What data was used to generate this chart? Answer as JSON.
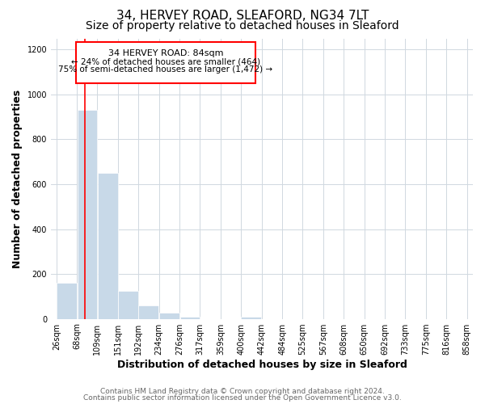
{
  "title": "34, HERVEY ROAD, SLEAFORD, NG34 7LT",
  "subtitle": "Size of property relative to detached houses in Sleaford",
  "xlabel": "Distribution of detached houses by size in Sleaford",
  "ylabel": "Number of detached properties",
  "bar_left_edges": [
    26,
    68,
    109,
    151,
    192,
    234,
    276,
    317,
    359,
    400,
    442,
    484,
    525,
    567,
    608,
    650,
    692,
    733,
    775,
    816
  ],
  "bar_widths": [
    42,
    41,
    42,
    41,
    42,
    42,
    41,
    42,
    41,
    42,
    42,
    41,
    42,
    41,
    42,
    42,
    41,
    42,
    41,
    42
  ],
  "bar_heights": [
    160,
    930,
    650,
    125,
    60,
    28,
    10,
    0,
    0,
    10,
    0,
    0,
    0,
    0,
    0,
    0,
    0,
    0,
    0,
    0
  ],
  "bar_color": "#c8d9e8",
  "bar_edgecolor": "#ffffff",
  "tick_labels": [
    "26sqm",
    "68sqm",
    "109sqm",
    "151sqm",
    "192sqm",
    "234sqm",
    "276sqm",
    "317sqm",
    "359sqm",
    "400sqm",
    "442sqm",
    "484sqm",
    "525sqm",
    "567sqm",
    "608sqm",
    "650sqm",
    "692sqm",
    "733sqm",
    "775sqm",
    "816sqm",
    "858sqm"
  ],
  "tick_positions": [
    26,
    68,
    109,
    151,
    192,
    234,
    276,
    317,
    359,
    400,
    442,
    484,
    525,
    567,
    608,
    650,
    692,
    733,
    775,
    816,
    858
  ],
  "ylim": [
    0,
    1250
  ],
  "xlim": [
    15,
    870
  ],
  "yticks": [
    0,
    200,
    400,
    600,
    800,
    1000,
    1200
  ],
  "red_line_x": 84,
  "annotation_title": "34 HERVEY ROAD: 84sqm",
  "annotation_line1": "← 24% of detached houses are smaller (464)",
  "annotation_line2": "75% of semi-detached houses are larger (1,472) →",
  "footer_line1": "Contains HM Land Registry data © Crown copyright and database right 2024.",
  "footer_line2": "Contains public sector information licensed under the Open Government Licence v3.0.",
  "background_color": "#ffffff",
  "grid_color": "#d0d8e0",
  "title_fontsize": 11,
  "subtitle_fontsize": 10,
  "axis_label_fontsize": 9,
  "tick_fontsize": 7,
  "footer_fontsize": 6.5,
  "annot_fontsize_title": 8,
  "annot_fontsize_body": 7.5
}
